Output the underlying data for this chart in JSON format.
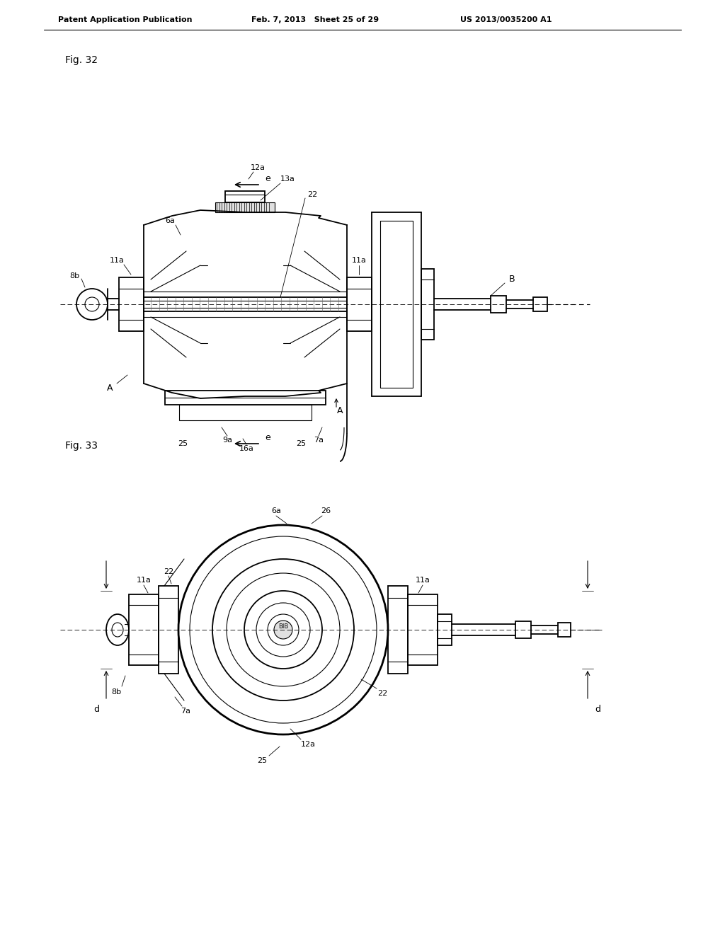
{
  "background_color": "#ffffff",
  "header_left": "Patent Application Publication",
  "header_mid": "Feb. 7, 2013   Sheet 25 of 29",
  "header_right": "US 2013/0035200 A1",
  "fig32_label": "Fig. 32",
  "fig33_label": "Fig. 33",
  "line_color": "#000000"
}
